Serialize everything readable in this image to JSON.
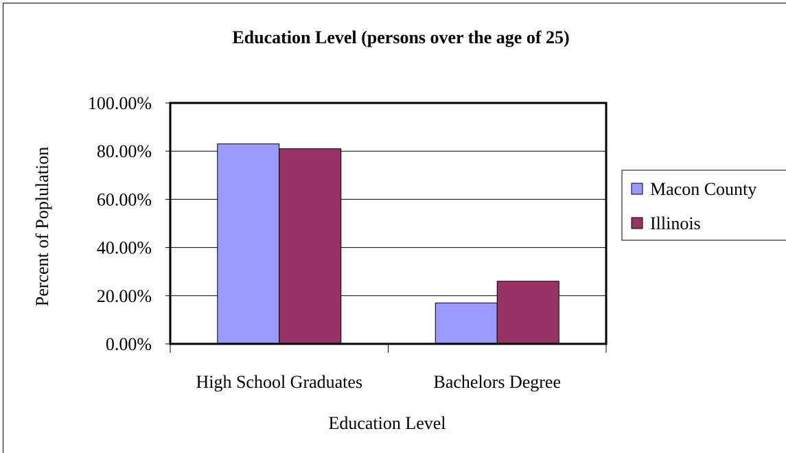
{
  "chart_data": {
    "type": "bar",
    "title": "Education Level (persons over the age of 25)",
    "xlabel": "Education Level",
    "ylabel": "Percent of Poplulation",
    "categories": [
      "High School Graduates",
      "Bachelors Degree"
    ],
    "series": [
      {
        "name": "Macon County",
        "values": [
          83,
          17
        ],
        "color": "#9999ff"
      },
      {
        "name": "Illinois",
        "values": [
          81,
          26
        ],
        "color": "#993366"
      }
    ],
    "ylim": [
      0,
      100
    ],
    "yticks": [
      "0.00%",
      "20.00%",
      "40.00%",
      "60.00%",
      "80.00%",
      "100.00%"
    ],
    "grid": true,
    "legend_position": "right"
  }
}
